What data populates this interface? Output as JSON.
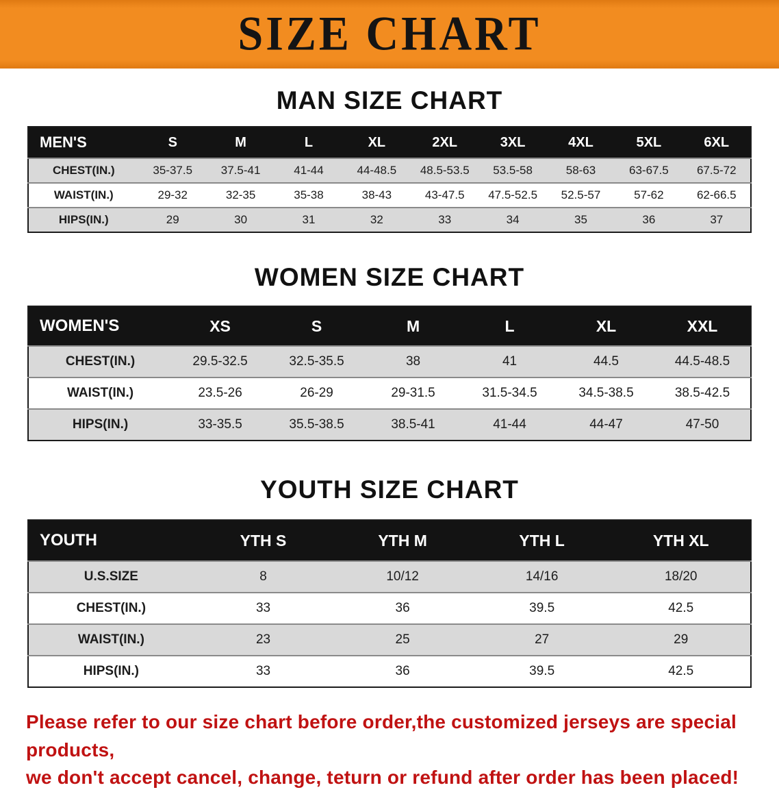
{
  "banner": {
    "title": "SIZE CHART",
    "bg_color": "#f28c20",
    "text_color": "#141414"
  },
  "colors": {
    "table_header_bg": "#131313",
    "table_header_text": "#ffffff",
    "row_stripe": "#d9d9d9",
    "disclaimer_text": "#c01212"
  },
  "sections": [
    {
      "title": "MAN SIZE CHART",
      "header_label": "MEN'S",
      "sizes": [
        "S",
        "M",
        "L",
        "XL",
        "2XL",
        "3XL",
        "4XL",
        "5XL",
        "6XL"
      ],
      "rows": [
        {
          "label": "CHEST(IN.)",
          "values": [
            "35-37.5",
            "37.5-41",
            "41-44",
            "44-48.5",
            "48.5-53.5",
            "53.5-58",
            "58-63",
            "63-67.5",
            "67.5-72"
          ]
        },
        {
          "label": "WAIST(IN.)",
          "values": [
            "29-32",
            "32-35",
            "35-38",
            "38-43",
            "43-47.5",
            "47.5-52.5",
            "52.5-57",
            "57-62",
            "62-66.5"
          ]
        },
        {
          "label": "HIPS(IN.)",
          "values": [
            "29",
            "30",
            "31",
            "32",
            "33",
            "34",
            "35",
            "36",
            "37"
          ]
        }
      ]
    },
    {
      "title": "WOMEN SIZE CHART",
      "header_label": "WOMEN'S",
      "sizes": [
        "XS",
        "S",
        "M",
        "L",
        "XL",
        "XXL"
      ],
      "rows": [
        {
          "label": "CHEST(IN.)",
          "values": [
            "29.5-32.5",
            "32.5-35.5",
            "38",
            "41",
            "44.5",
            "44.5-48.5"
          ]
        },
        {
          "label": "WAIST(IN.)",
          "values": [
            "23.5-26",
            "26-29",
            "29-31.5",
            "31.5-34.5",
            "34.5-38.5",
            "38.5-42.5"
          ]
        },
        {
          "label": "HIPS(IN.)",
          "values": [
            "33-35.5",
            "35.5-38.5",
            "38.5-41",
            "41-44",
            "44-47",
            "47-50"
          ]
        }
      ]
    },
    {
      "title": "YOUTH SIZE CHART",
      "header_label": "YOUTH",
      "sizes": [
        "YTH S",
        "YTH M",
        "YTH L",
        "YTH XL"
      ],
      "rows": [
        {
          "label": "U.S.SIZE",
          "values": [
            "8",
            "10/12",
            "14/16",
            "18/20"
          ]
        },
        {
          "label": "CHEST(IN.)",
          "values": [
            "33",
            "36",
            "39.5",
            "42.5"
          ]
        },
        {
          "label": "WAIST(IN.)",
          "values": [
            "23",
            "25",
            "27",
            "29"
          ]
        },
        {
          "label": "HIPS(IN.)",
          "values": [
            "33",
            "36",
            "39.5",
            "42.5"
          ]
        }
      ]
    }
  ],
  "disclaimer": {
    "line1": "Please refer to our size chart before order,the customized jerseys are special products,",
    "line2": "we don't accept cancel, change, teturn or refund after order has been placed!"
  }
}
